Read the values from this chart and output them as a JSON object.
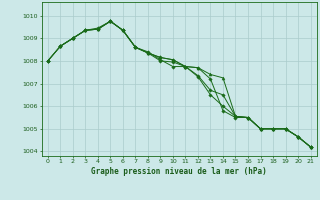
{
  "title": "Graphe pression niveau de la mer (hPa)",
  "background_color": "#cce8e8",
  "grid_color": "#aacccc",
  "line_color": "#1a6b1a",
  "xlim": [
    -0.5,
    21.5
  ],
  "ylim": [
    1003.8,
    1010.6
  ],
  "yticks": [
    1004,
    1005,
    1006,
    1007,
    1008,
    1009,
    1010
  ],
  "xticks": [
    0,
    1,
    2,
    3,
    4,
    5,
    6,
    7,
    8,
    9,
    10,
    11,
    12,
    13,
    14,
    15,
    16,
    17,
    18,
    19,
    20,
    21
  ],
  "lines": [
    {
      "x": [
        0,
        1,
        2,
        3,
        4,
        5,
        6,
        7,
        8,
        9,
        10,
        11,
        12,
        13,
        14,
        15,
        16,
        17,
        18,
        19,
        20,
        21
      ],
      "y": [
        1008.0,
        1008.65,
        1009.0,
        1009.35,
        1009.4,
        1009.75,
        1009.35,
        1008.6,
        1008.35,
        1008.0,
        1007.95,
        1007.75,
        1007.3,
        1006.5,
        1006.0,
        1005.55,
        1005.5,
        1005.0,
        1005.0,
        1005.0,
        1004.65,
        1004.2
      ],
      "marker": "D",
      "markersize": 1.8
    },
    {
      "x": [
        0,
        1,
        2,
        3,
        4,
        5,
        6,
        7,
        8,
        9,
        10,
        11,
        12,
        13,
        14,
        15,
        16,
        17,
        18,
        19,
        20,
        21
      ],
      "y": [
        1008.0,
        1008.65,
        1009.0,
        1009.35,
        1009.4,
        1009.75,
        1009.35,
        1008.6,
        1008.35,
        1008.15,
        1008.05,
        1007.75,
        1007.7,
        1007.2,
        1005.8,
        1005.5,
        1005.5,
        1005.0,
        1005.0,
        1005.0,
        1004.65,
        1004.2
      ],
      "marker": "D",
      "markersize": 1.8
    },
    {
      "x": [
        1,
        2,
        3,
        4,
        5,
        6,
        7,
        8,
        9,
        10,
        11,
        12,
        13,
        14,
        15,
        16,
        17,
        18,
        19,
        20,
        21
      ],
      "y": [
        1008.65,
        1009.0,
        1009.35,
        1009.4,
        1009.75,
        1009.35,
        1008.6,
        1008.35,
        1008.15,
        1008.05,
        1007.75,
        1007.7,
        1007.4,
        1007.25,
        1005.55,
        1005.5,
        1005.0,
        1005.0,
        1005.0,
        1004.65,
        1004.2
      ],
      "marker": "^",
      "markersize": 2.2
    },
    {
      "x": [
        0,
        1,
        2,
        3,
        4,
        5,
        6,
        7,
        8,
        9,
        10,
        11,
        12,
        13,
        14,
        15,
        16,
        17,
        18,
        19,
        20,
        21
      ],
      "y": [
        1008.0,
        1008.65,
        1009.0,
        1009.35,
        1009.45,
        1009.75,
        1009.35,
        1008.6,
        1008.4,
        1008.05,
        1007.75,
        1007.75,
        1007.35,
        1006.7,
        1006.5,
        1005.55,
        1005.5,
        1005.0,
        1005.0,
        1005.0,
        1004.65,
        1004.2
      ],
      "marker": "D",
      "markersize": 1.8
    }
  ]
}
